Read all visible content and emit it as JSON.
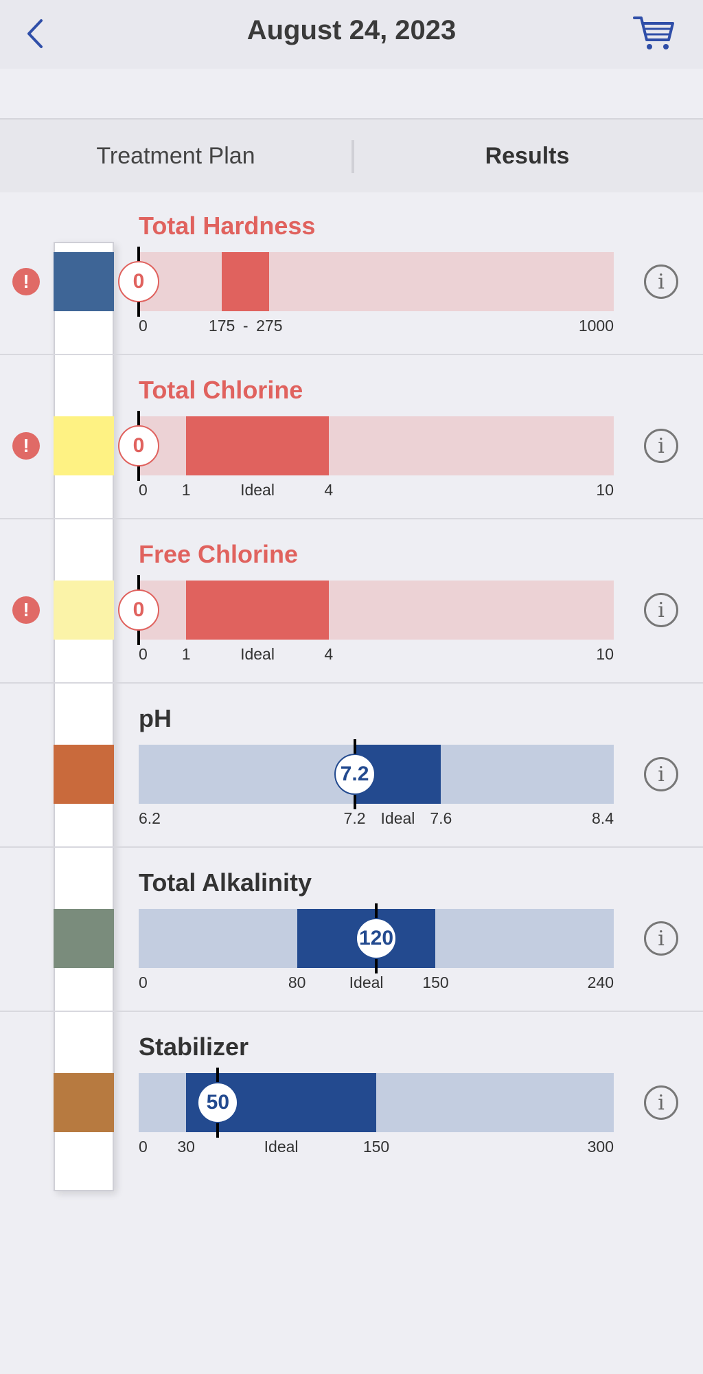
{
  "header": {
    "title": "August 24, 2023",
    "back_icon": "chevron-left-icon",
    "cart_icon": "cart-icon",
    "accent_color": "#2f4ea8"
  },
  "tabs": [
    {
      "label": "Treatment Plan",
      "active": false
    },
    {
      "label": "Results",
      "active": true
    }
  ],
  "colors": {
    "alert": "#e0625e",
    "alert_track": "#ecd2d5",
    "ok": "#234a8f",
    "ok_track": "#c3cde0"
  },
  "results": [
    {
      "name": "Total Hardness",
      "status": "alert",
      "pad_color": "#3e6596",
      "min": 0,
      "max": 1000,
      "ideal_low": 175,
      "ideal_high": 275,
      "value": 0,
      "value_text": "0",
      "labels": {
        "min": "0",
        "low": "175",
        "sep": "-",
        "high": "275",
        "max": "1000",
        "ideal": ""
      },
      "alert_icon": "exclamation-icon",
      "info_icon": "info-icon"
    },
    {
      "name": "Total Chlorine",
      "status": "alert",
      "pad_color": "#fef283",
      "min": 0,
      "max": 10,
      "ideal_low": 1,
      "ideal_high": 4,
      "value": 0,
      "value_text": "0",
      "labels": {
        "min": "0",
        "low": "1",
        "sep": "",
        "high": "4",
        "max": "10",
        "ideal": "Ideal"
      },
      "alert_icon": "exclamation-icon",
      "info_icon": "info-icon"
    },
    {
      "name": "Free Chlorine",
      "status": "alert",
      "pad_color": "#fbf3a8",
      "min": 0,
      "max": 10,
      "ideal_low": 1,
      "ideal_high": 4,
      "value": 0,
      "value_text": "0",
      "labels": {
        "min": "0",
        "low": "1",
        "sep": "",
        "high": "4",
        "max": "10",
        "ideal": "Ideal"
      },
      "alert_icon": "exclamation-icon",
      "info_icon": "info-icon"
    },
    {
      "name": "pH",
      "status": "ok",
      "pad_color": "#c96a3c",
      "min": 6.2,
      "max": 8.4,
      "ideal_low": 7.2,
      "ideal_high": 7.6,
      "value": 7.2,
      "value_text": "7.2",
      "labels": {
        "min": "6.2",
        "low": "7.2",
        "sep": "",
        "high": "7.6",
        "max": "8.4",
        "ideal": "Ideal"
      },
      "info_icon": "info-icon"
    },
    {
      "name": "Total Alkalinity",
      "status": "ok",
      "pad_color": "#7a8c7c",
      "min": 0,
      "max": 240,
      "ideal_low": 80,
      "ideal_high": 150,
      "value": 120,
      "value_text": "120",
      "labels": {
        "min": "0",
        "low": "80",
        "sep": "",
        "high": "150",
        "max": "240",
        "ideal": "Ideal"
      },
      "info_icon": "info-icon"
    },
    {
      "name": "Stabilizer",
      "status": "ok",
      "pad_color": "#b77a40",
      "min": 0,
      "max": 300,
      "ideal_low": 30,
      "ideal_high": 150,
      "value": 50,
      "value_text": "50",
      "labels": {
        "min": "0",
        "low": "30",
        "sep": "",
        "high": "150",
        "max": "300",
        "ideal": "Ideal"
      },
      "info_icon": "info-icon"
    }
  ]
}
